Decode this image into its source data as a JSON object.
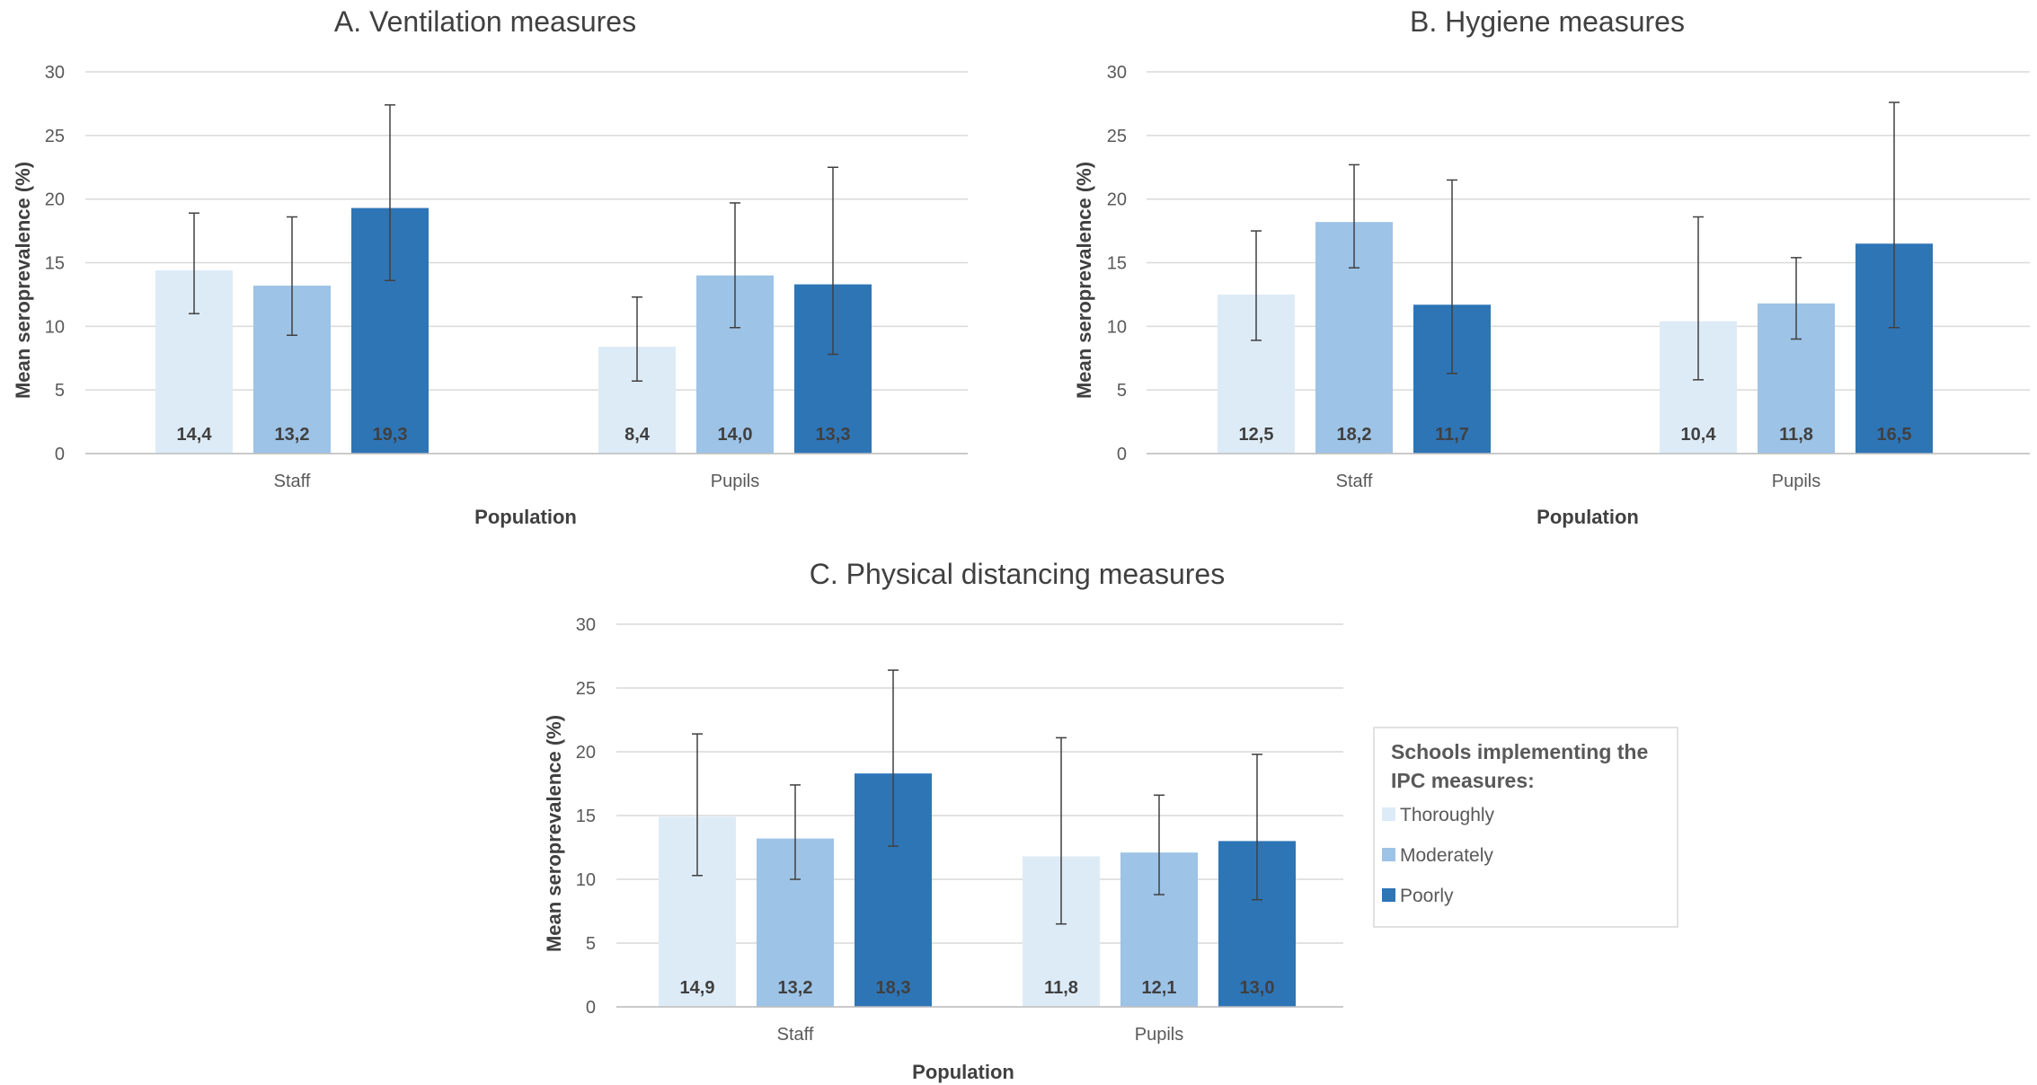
{
  "chart_data": [
    {
      "type": "bar",
      "title": "A. Ventilation measures",
      "xlabel": "Population",
      "ylabel": "Mean seroprevalence (%)",
      "ylim": [
        0,
        30
      ],
      "yticks": [
        0,
        5,
        10,
        15,
        20,
        25,
        30
      ],
      "grid": true,
      "categories": [
        "Staff",
        "Pupils"
      ],
      "series": [
        {
          "name": "Thoroughly",
          "color": "#DDEBF7",
          "values": [
            14.4,
            8.4
          ],
          "labels": [
            "14,4",
            "8,4"
          ],
          "err_low": [
            11.0,
            5.7
          ],
          "err_high": [
            18.9,
            12.3
          ]
        },
        {
          "name": "Moderately",
          "color": "#9DC3E6",
          "values": [
            13.2,
            14.0
          ],
          "labels": [
            "13,2",
            "14,0"
          ],
          "err_low": [
            9.3,
            9.9
          ],
          "err_high": [
            18.6,
            19.7
          ]
        },
        {
          "name": "Poorly",
          "color": "#2E75B6",
          "values": [
            19.3,
            13.3
          ],
          "labels": [
            "19,3",
            "13,3"
          ],
          "err_low": [
            13.6,
            7.8
          ],
          "err_high": [
            27.4,
            22.5
          ]
        }
      ]
    },
    {
      "type": "bar",
      "title": "B. Hygiene measures",
      "xlabel": "Population",
      "ylabel": "Mean seroprevalence (%)",
      "ylim": [
        0,
        30
      ],
      "yticks": [
        0,
        5,
        10,
        15,
        20,
        25,
        30
      ],
      "grid": true,
      "categories": [
        "Staff",
        "Pupils"
      ],
      "series": [
        {
          "name": "Thoroughly",
          "color": "#DDEBF7",
          "values": [
            12.5,
            10.4
          ],
          "labels": [
            "12,5",
            "10,4"
          ],
          "err_low": [
            8.9,
            5.8
          ],
          "err_high": [
            17.5,
            18.6
          ]
        },
        {
          "name": "Moderately",
          "color": "#9DC3E6",
          "values": [
            18.2,
            11.8
          ],
          "labels": [
            "18,2",
            "11,8"
          ],
          "err_low": [
            14.6,
            9.0
          ],
          "err_high": [
            22.7,
            15.4
          ]
        },
        {
          "name": "Poorly",
          "color": "#2E75B6",
          "values": [
            11.7,
            16.5
          ],
          "labels": [
            "11,7",
            "16,5"
          ],
          "err_low": [
            6.3,
            9.9
          ],
          "err_high": [
            21.5,
            27.6
          ]
        }
      ]
    },
    {
      "type": "bar",
      "title": "C. Physical distancing measures",
      "xlabel": "Population",
      "ylabel": "Mean seroprevalence (%)",
      "ylim": [
        0,
        30
      ],
      "yticks": [
        0,
        5,
        10,
        15,
        20,
        25,
        30
      ],
      "grid": true,
      "categories": [
        "Staff",
        "Pupils"
      ],
      "series": [
        {
          "name": "Thoroughly",
          "color": "#DDEBF7",
          "values": [
            14.9,
            11.8
          ],
          "labels": [
            "14,9",
            "11,8"
          ],
          "err_low": [
            10.3,
            6.5
          ],
          "err_high": [
            21.4,
            21.1
          ]
        },
        {
          "name": "Moderately",
          "color": "#9DC3E6",
          "values": [
            13.2,
            12.1
          ],
          "labels": [
            "13,2",
            "12,1"
          ],
          "err_low": [
            10.0,
            8.8
          ],
          "err_high": [
            17.4,
            16.6
          ]
        },
        {
          "name": "Poorly",
          "color": "#2E75B6",
          "values": [
            18.3,
            13.0
          ],
          "labels": [
            "18,3",
            "13,0"
          ],
          "err_low": [
            12.6,
            8.4
          ],
          "err_high": [
            26.4,
            19.8
          ]
        }
      ]
    }
  ],
  "legend": {
    "title_lines": [
      "Schools implementing the",
      "IPC measures:"
    ],
    "items": [
      {
        "label": "Thoroughly",
        "color": "#DDEBF7"
      },
      {
        "label": "Moderately",
        "color": "#9DC3E6"
      },
      {
        "label": "Poorly",
        "color": "#2E75B6"
      }
    ]
  }
}
